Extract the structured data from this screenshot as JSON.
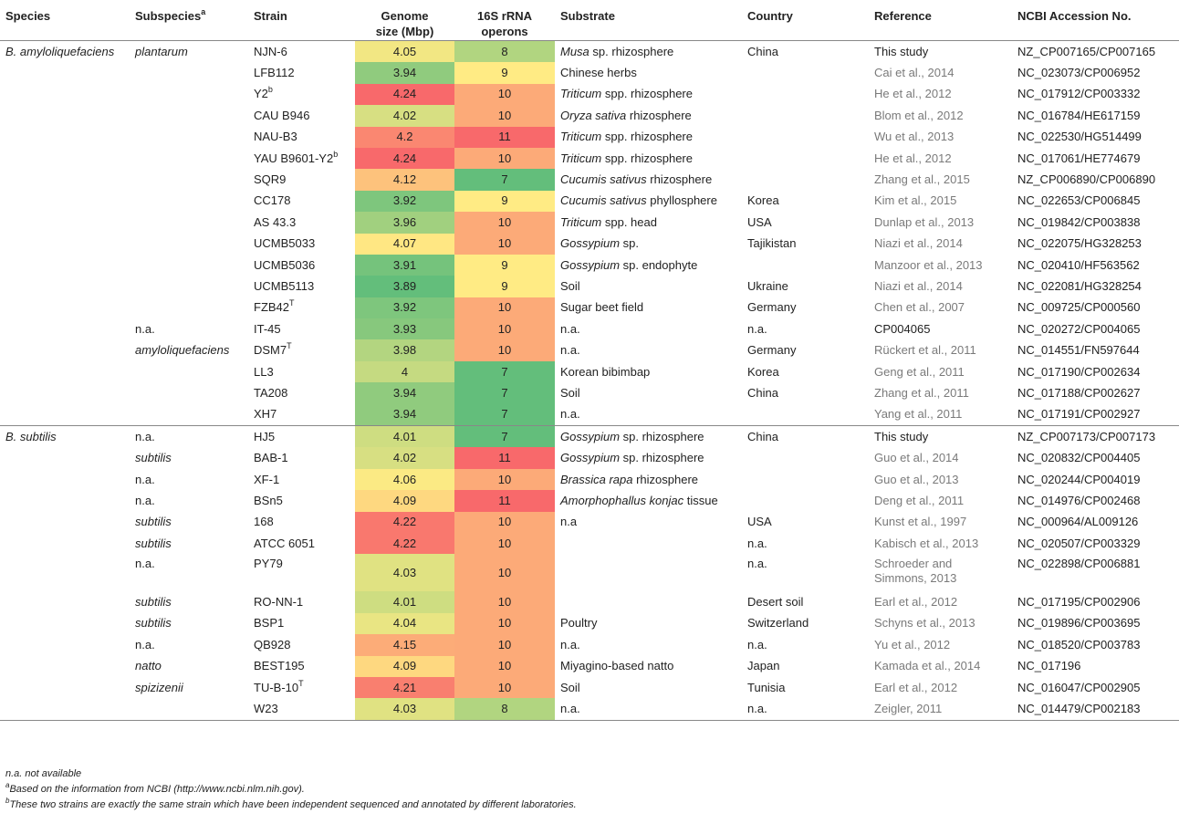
{
  "headers": {
    "species": "Species",
    "subspecies": "Subspecies",
    "subspecies_sup": "a",
    "strain": "Strain",
    "genome_l1": "Genome",
    "genome_l2": "size (Mbp)",
    "rrna_l1": "16S rRNA",
    "rrna_l2": "operons",
    "substrate": "Substrate",
    "country": "Country",
    "reference": "Reference",
    "ncbi": "NCBI Accession No."
  },
  "rows": [
    {
      "species": "B. amyloliquefaciens",
      "subspecies": "plantarum",
      "sub_italic": true,
      "strain": "NJN-6",
      "sup": "",
      "genome": "4.05",
      "rrna": "8",
      "subA": "Musa",
      "subB": " sp. rhizosphere",
      "country": "China",
      "ref": "This study",
      "ref_black": true,
      "ncbi": "NZ_CP007165/CP007165"
    },
    {
      "species": "",
      "subspecies": "",
      "sub_italic": true,
      "strain": "LFB112",
      "sup": "",
      "genome": "3.94",
      "rrna": "9",
      "subA": "",
      "subB": "Chinese herbs",
      "country": "",
      "ref": "Cai et al., 2014",
      "ref_black": false,
      "ncbi": "NC_023073/CP006952"
    },
    {
      "species": "",
      "subspecies": "",
      "sub_italic": true,
      "strain": "Y2",
      "sup": "b",
      "genome": "4.24",
      "rrna": "10",
      "subA": "Triticum",
      "subB": " spp. rhizosphere",
      "country": "",
      "ref": "He et al., 2012",
      "ref_black": false,
      "ncbi": "NC_017912/CP003332"
    },
    {
      "species": "",
      "subspecies": "",
      "sub_italic": true,
      "strain": "CAU B946",
      "sup": "",
      "genome": "4.02",
      "rrna": "10",
      "subA": "Oryza sativa",
      "subB": " rhizosphere",
      "country": "",
      "ref": "Blom et al., 2012",
      "ref_black": false,
      "ncbi": "NC_016784/HE617159"
    },
    {
      "species": "",
      "subspecies": "",
      "sub_italic": true,
      "strain": "NAU-B3",
      "sup": "",
      "genome": "4.2",
      "rrna": "11",
      "subA": "Triticum",
      "subB": " spp. rhizosphere",
      "country": "",
      "ref": "Wu et al., 2013",
      "ref_black": false,
      "ncbi": "NC_022530/HG514499"
    },
    {
      "species": "",
      "subspecies": "",
      "sub_italic": true,
      "strain": "YAU B9601-Y2",
      "sup": "b",
      "genome": "4.24",
      "rrna": "10",
      "subA": "Triticum",
      "subB": " spp. rhizosphere",
      "country": "",
      "ref": "He et al., 2012",
      "ref_black": false,
      "ncbi": "NC_017061/HE774679"
    },
    {
      "species": "",
      "subspecies": "",
      "sub_italic": true,
      "strain": "SQR9",
      "sup": "",
      "genome": "4.12",
      "rrna": "7",
      "subA": "Cucumis sativus",
      "subB": " rhizosphere",
      "country": "",
      "ref": "Zhang et al., 2015",
      "ref_black": false,
      "ncbi": "NZ_CP006890/CP006890"
    },
    {
      "species": "",
      "subspecies": "",
      "sub_italic": true,
      "strain": "CC178",
      "sup": "",
      "genome": "3.92",
      "rrna": "9",
      "subA": "Cucumis sativus",
      "subB": " phyllosphere",
      "country": "Korea",
      "ref": "Kim et al., 2015",
      "ref_black": false,
      "ncbi": "NC_022653/CP006845"
    },
    {
      "species": "",
      "subspecies": "",
      "sub_italic": true,
      "strain": "AS 43.3",
      "sup": "",
      "genome": "3.96",
      "rrna": "10",
      "subA": "Triticum",
      "subB": " spp. head",
      "country": "USA",
      "ref": "Dunlap et al., 2013",
      "ref_black": false,
      "ncbi": "NC_019842/CP003838"
    },
    {
      "species": "",
      "subspecies": "",
      "sub_italic": true,
      "strain": "UCMB5033",
      "sup": "",
      "genome": "4.07",
      "rrna": "10",
      "subA": "Gossypium",
      "subB": " sp.",
      "country": "Tajikistan",
      "ref": "Niazi et al., 2014",
      "ref_black": false,
      "ncbi": "NC_022075/HG328253"
    },
    {
      "species": "",
      "subspecies": "",
      "sub_italic": true,
      "strain": "UCMB5036",
      "sup": "",
      "genome": "3.91",
      "rrna": "9",
      "subA": "Gossypium",
      "subB": " sp. endophyte",
      "country": "",
      "ref": "Manzoor et al., 2013",
      "ref_black": false,
      "ncbi": "NC_020410/HF563562"
    },
    {
      "species": "",
      "subspecies": "",
      "sub_italic": true,
      "strain": "UCMB5113",
      "sup": "",
      "genome": "3.89",
      "rrna": "9",
      "subA": "",
      "subB": "Soil",
      "country": "Ukraine",
      "ref": "Niazi et al., 2014",
      "ref_black": false,
      "ncbi": "NC_022081/HG328254"
    },
    {
      "species": "",
      "subspecies": "",
      "sub_italic": true,
      "strain": "FZB42",
      "sup": "T",
      "genome": "3.92",
      "rrna": "10",
      "subA": "",
      "subB": "Sugar beet field",
      "country": "Germany",
      "ref": "Chen et al., 2007",
      "ref_black": false,
      "ncbi": "NC_009725/CP000560"
    },
    {
      "species": "",
      "subspecies": "n.a.",
      "sub_italic": false,
      "strain": "IT-45",
      "sup": "",
      "genome": "3.93",
      "rrna": "10",
      "subA": "",
      "subB": "n.a.",
      "country": "n.a.",
      "ref": "CP004065",
      "ref_black": true,
      "ncbi": "NC_020272/CP004065"
    },
    {
      "species": "",
      "subspecies": "amyloliquefaciens",
      "sub_italic": true,
      "strain": "DSM7",
      "sup": "T",
      "genome": "3.98",
      "rrna": "10",
      "subA": "",
      "subB": "n.a.",
      "country": "Germany",
      "ref": "Rückert et al., 2011",
      "ref_black": false,
      "ncbi": "NC_014551/FN597644"
    },
    {
      "species": "",
      "subspecies": "",
      "sub_italic": true,
      "strain": "LL3",
      "sup": "",
      "genome": "4",
      "rrna": "7",
      "subA": "",
      "subB": "Korean bibimbap",
      "country": "Korea",
      "ref": "Geng et al., 2011",
      "ref_black": false,
      "ncbi": "NC_017190/CP002634"
    },
    {
      "species": "",
      "subspecies": "",
      "sub_italic": true,
      "strain": "TA208",
      "sup": "",
      "genome": "3.94",
      "rrna": "7",
      "subA": "",
      "subB": "Soil",
      "country": "China",
      "ref": "Zhang et al., 2011",
      "ref_black": false,
      "ncbi": "NC_017188/CP002627"
    },
    {
      "species": "",
      "subspecies": "",
      "sub_italic": true,
      "strain": "XH7",
      "sup": "",
      "genome": "3.94",
      "rrna": "7",
      "subA": "",
      "subB": "n.a.",
      "country": "",
      "ref": "Yang et al., 2011",
      "ref_black": false,
      "ncbi": "NC_017191/CP002927"
    },
    {
      "species": "B. subtilis",
      "subspecies": "n.a.",
      "sub_italic": false,
      "strain": "HJ5",
      "sup": "",
      "genome": "4.01",
      "rrna": "7",
      "subA": "Gossypium",
      "subB": " sp. rhizosphere",
      "country": "China",
      "ref": "This study",
      "ref_black": true,
      "ncbi": "NZ_CP007173/CP007173"
    },
    {
      "species": "",
      "subspecies": "subtilis",
      "sub_italic": true,
      "strain": "BAB-1",
      "sup": "",
      "genome": "4.02",
      "rrna": "11",
      "subA": "Gossypium",
      "subB": " sp. rhizosphere",
      "country": "",
      "ref": "Guo et al., 2014",
      "ref_black": false,
      "ncbi": "NC_020832/CP004405"
    },
    {
      "species": "",
      "subspecies": "n.a.",
      "sub_italic": false,
      "strain": "XF-1",
      "sup": "",
      "genome": "4.06",
      "rrna": "10",
      "subA": "Brassica rapa",
      "subB": " rhizosphere",
      "country": "",
      "ref": "Guo et al., 2013",
      "ref_black": false,
      "ncbi": "NC_020244/CP004019"
    },
    {
      "species": "",
      "subspecies": "n.a.",
      "sub_italic": false,
      "strain": "BSn5",
      "sup": "",
      "genome": "4.09",
      "rrna": "11",
      "subA": "Amorphophallus konjac",
      "subB": " tissue",
      "country": "",
      "ref": "Deng et al., 2011",
      "ref_black": false,
      "ncbi": "NC_014976/CP002468"
    },
    {
      "species": "",
      "subspecies": "subtilis",
      "sub_italic": true,
      "strain": "168",
      "sup": "",
      "genome": "4.22",
      "rrna": "10",
      "subA": "",
      "subB": "n.a",
      "country": "USA",
      "ref": "Kunst et al., 1997",
      "ref_black": false,
      "ncbi": "NC_000964/AL009126"
    },
    {
      "species": "",
      "subspecies": "subtilis",
      "sub_italic": true,
      "strain": "ATCC 6051",
      "sup": "",
      "genome": "4.22",
      "rrna": "10",
      "subA": "",
      "subB": "",
      "country": "n.a.",
      "ref": "Kabisch et al., 2013",
      "ref_black": false,
      "ncbi": "NC_020507/CP003329"
    },
    {
      "species": "",
      "subspecies": "n.a.",
      "sub_italic": false,
      "strain": "PY79",
      "sup": "",
      "genome": "4.03",
      "rrna": "10",
      "subA": "",
      "subB": "",
      "country": "n.a.",
      "ref": "Schroeder and Simmons, 2013",
      "ref_black": false,
      "ncbi": "NC_022898/CP006881",
      "tall": true
    },
    {
      "species": "",
      "subspecies": "subtilis",
      "sub_italic": true,
      "strain": "RO-NN-1",
      "sup": "",
      "genome": "4.01",
      "rrna": "10",
      "subA": "",
      "subB": "",
      "country": "Desert soil",
      "ref": "Earl et al., 2012",
      "ref_black": false,
      "ncbi": "NC_017195/CP002906"
    },
    {
      "species": "",
      "subspecies": "subtilis",
      "sub_italic": true,
      "strain": "BSP1",
      "sup": "",
      "genome": "4.04",
      "rrna": "10",
      "subA": "",
      "subB": "Poultry",
      "country": "Switzerland",
      "ref": "Schyns et al., 2013",
      "ref_black": false,
      "ncbi": "NC_019896/CP003695"
    },
    {
      "species": "",
      "subspecies": "n.a.",
      "sub_italic": false,
      "strain": "QB928",
      "sup": "",
      "genome": "4.15",
      "rrna": "10",
      "subA": "",
      "subB": "n.a.",
      "country": "n.a.",
      "ref": "Yu et al., 2012",
      "ref_black": false,
      "ncbi": "NC_018520/CP003783"
    },
    {
      "species": "",
      "subspecies": "natto",
      "sub_italic": true,
      "strain": "BEST195",
      "sup": "",
      "genome": "4.09",
      "rrna": "10",
      "subA": "",
      "subB": "Miyagino-based natto",
      "country": "Japan",
      "ref": "Kamada et al., 2014",
      "ref_black": false,
      "ncbi": "NC_017196"
    },
    {
      "species": "",
      "subspecies": "spizizenii",
      "sub_italic": true,
      "strain": "TU-B-10",
      "sup": "T",
      "genome": "4.21",
      "rrna": "10",
      "subA": "",
      "subB": "Soil",
      "country": "Tunisia",
      "ref": "Earl et al., 2012",
      "ref_black": false,
      "ncbi": "NC_016047/CP002905"
    },
    {
      "species": "",
      "subspecies": "",
      "sub_italic": true,
      "strain": "W23",
      "sup": "",
      "genome": "4.03",
      "rrna": "8",
      "subA": "",
      "subB": "n.a.",
      "country": "n.a.",
      "ref": "Zeigler, 2011",
      "ref_black": false,
      "ncbi": "NC_014479/CP002183"
    }
  ],
  "footnotes": {
    "na": "n.a. not available",
    "a_mark": "a",
    "a_text": "Based on the information from NCBI (http://www.ncbi.nlm.nih.gov).",
    "b_mark": "b",
    "b_text": "These two strains are exactly the same strain which have been independent sequenced and annotated by different laboratories."
  }
}
